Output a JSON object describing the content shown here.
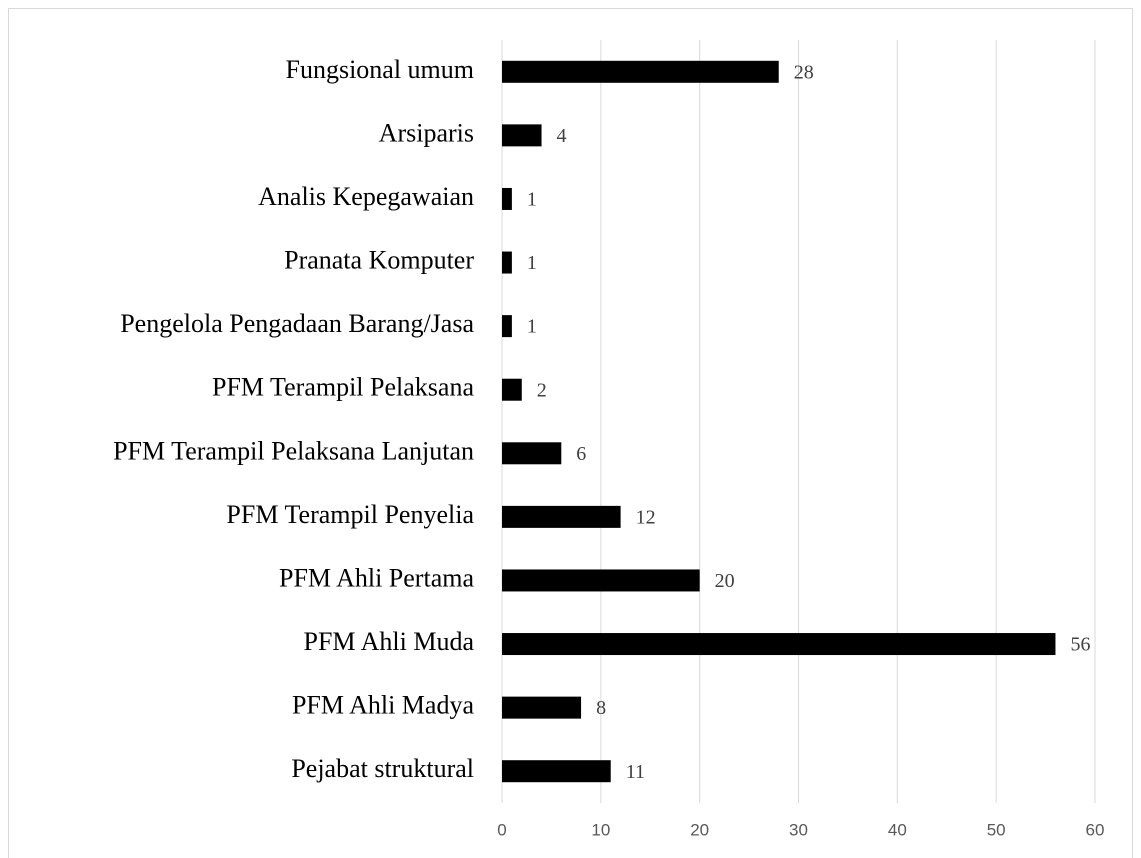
{
  "chart_data": {
    "type": "bar",
    "orientation": "horizontal",
    "categories": [
      "Fungsional umum",
      "Arsiparis",
      "Analis Kepegawaian",
      "Pranata Komputer",
      "Pengelola Pengadaan Barang/Jasa",
      "PFM Terampil Pelaksana",
      "PFM Terampil Pelaksana Lanjutan",
      "PFM Terampil Penyelia",
      "PFM Ahli Pertama",
      "PFM Ahli Muda",
      "PFM Ahli Madya",
      "Pejabat struktural"
    ],
    "values": [
      28,
      4,
      1,
      1,
      1,
      2,
      6,
      12,
      20,
      56,
      8,
      11
    ],
    "color": "#000000",
    "xlim": [
      0,
      60
    ],
    "xticks": [
      0,
      10,
      20,
      30,
      40,
      50,
      60
    ],
    "grid": true
  }
}
